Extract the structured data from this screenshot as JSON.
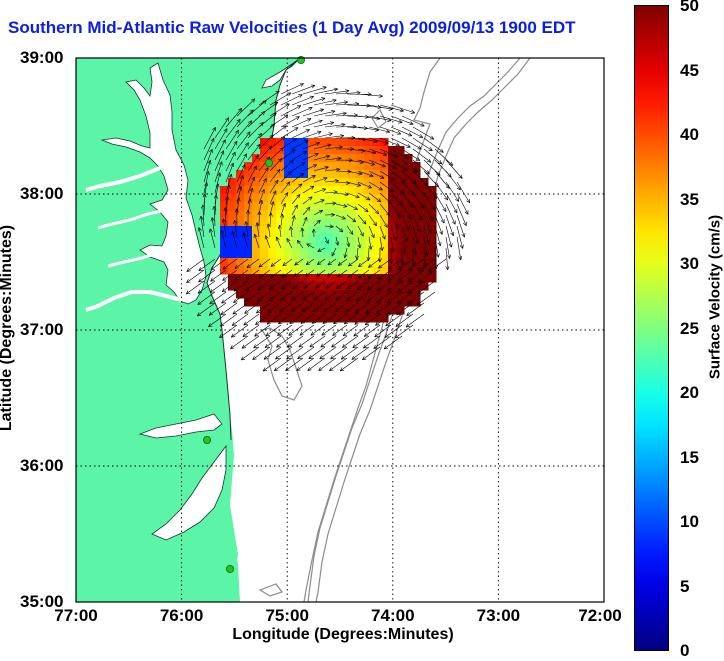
{
  "title": "Southern Mid-Atlantic Raw Velocities (1 Day Avg) 2009/09/13 1900 EDT",
  "axes": {
    "xlabel": "Longitude (Degrees:Minutes)",
    "ylabel": "Latitude (Degrees:Minutes)",
    "xticks": [
      "77:00",
      "76:00",
      "75:00",
      "74:00",
      "73:00",
      "72:00"
    ],
    "yticks": [
      "39:00",
      "38:00",
      "37:00",
      "36:00",
      "35:00"
    ]
  },
  "colorbar": {
    "label": "Surface Velocity (cm/s)",
    "ticks": [
      "50",
      "45",
      "40",
      "35",
      "30",
      "25",
      "20",
      "15",
      "10",
      "5",
      "0"
    ],
    "min": 0,
    "max": 50
  },
  "colors": {
    "land": "#5cf5a8",
    "water": "#ffffff",
    "coast": "#0f3a25",
    "bathy": "#8c8c8c",
    "grid": "#000000",
    "station": "#22c322",
    "title": "#0a1ee6"
  },
  "icons": {
    "station": "green-circle-marker",
    "vector": "arrow"
  }
}
